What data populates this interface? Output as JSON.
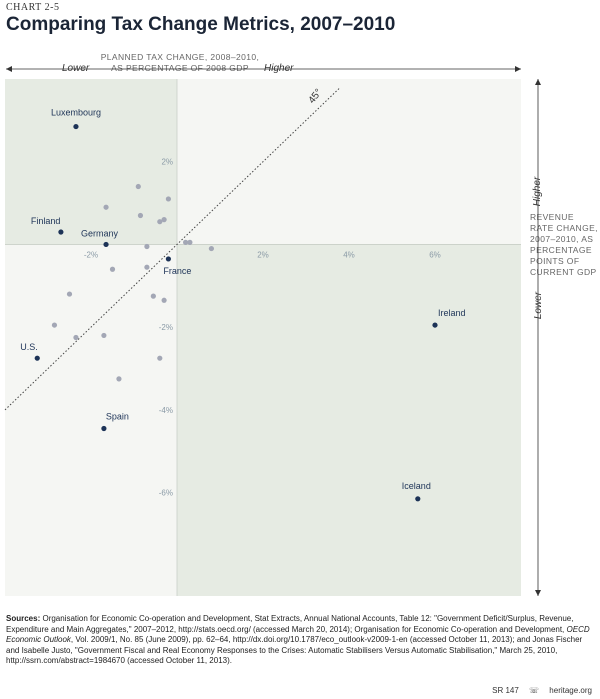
{
  "chart_number": "CHART 2-5",
  "title": "Comparing Tax Change Metrics, 2007–2010",
  "x_axis": {
    "label_line1": "PLANNED TAX CHANGE, 2008–2010,",
    "label_line2": "AS PERCENTAGE OF 2008 GDP",
    "lower": "Lower",
    "higher": "Higher"
  },
  "y_axis": {
    "label_line1": "REVENUE",
    "label_line2": "RATE CHANGE,",
    "label_line3": "2007–2010, AS",
    "label_line4": "PERCENTAGE",
    "label_line5": "POINTS OF",
    "label_line6": "CURRENT GDP",
    "higher": "Higher",
    "lower": "Lower"
  },
  "sources_label": "Sources:",
  "sources_text_1": "Organisation for Economic Co-operation and Development, Stat Extracts, Annual National Accounts, Table 12: \"Government Deficit/Surplus, Revenue, Expenditure and Main Aggregates,\" 2007–2012, http://stats.oecd.org/ (accessed March 20, 2014); Organisation for Economic Co-operation and Development,",
  "sources_italic": "OECD Economic Outlook",
  "sources_text_2": ", Vol. 2009/1, No. 85 (June 2009), pp. 62–64, http://dx.doi.org/10.1787/eco_outlook-v2009-1-en (accessed October 11, 2013); and Jonas Fischer and Isabelle Justo, \"Government Fiscal and Real Economy Responses to the Crises: Automatic Stabilisers Versus Automatic Stabilisation,\" March 25, 2010, http://ssrn.com/abstract=1984670 (accessed October 11, 2013).",
  "footer": {
    "report": "SR 147",
    "site": "heritage.org"
  },
  "colors": {
    "plot_bg": "#f5f6f3",
    "shade": "#e6ebe3",
    "labeled_point": "#1d3357",
    "unlabeled_point": "#a3a7b5",
    "tick_label": "#8a9aa6"
  },
  "chart_data": {
    "type": "scatter",
    "xlim": [
      -4,
      8
    ],
    "ylim": [
      -8.5,
      4
    ],
    "x_ticks": [
      -2,
      2,
      4,
      6
    ],
    "x_tick_labels": [
      "-2%",
      "2%",
      "4%",
      "6%"
    ],
    "y_ticks": [
      2,
      -2,
      -4,
      -6
    ],
    "y_tick_labels": [
      "2%",
      "-2%",
      "-4%",
      "-6%"
    ],
    "reference_line": {
      "slope": 1,
      "label": "45°"
    },
    "labeled_points": [
      {
        "name": "Luxembourg",
        "x": -2.35,
        "y": 2.85
      },
      {
        "name": "Finland",
        "x": -2.7,
        "y": 0.3
      },
      {
        "name": "Germany",
        "x": -1.65,
        "y": 0.0
      },
      {
        "name": "France",
        "x": -0.2,
        "y": -0.35
      },
      {
        "name": "Ireland",
        "x": 6.0,
        "y": -1.95
      },
      {
        "name": "U.S.",
        "x": -3.25,
        "y": -2.75
      },
      {
        "name": "Spain",
        "x": -1.7,
        "y": -4.45
      },
      {
        "name": "Iceland",
        "x": 5.6,
        "y": -6.15
      }
    ],
    "other_points": [
      {
        "x": -0.9,
        "y": 1.4
      },
      {
        "x": -1.65,
        "y": 0.9
      },
      {
        "x": -0.2,
        "y": 1.1
      },
      {
        "x": -0.85,
        "y": 0.7
      },
      {
        "x": -0.4,
        "y": 0.55
      },
      {
        "x": -0.3,
        "y": 0.6
      },
      {
        "x": -0.7,
        "y": -0.05
      },
      {
        "x": 0.2,
        "y": 0.05
      },
      {
        "x": 0.3,
        "y": 0.05
      },
      {
        "x": 0.8,
        "y": -0.1
      },
      {
        "x": -1.5,
        "y": -0.6
      },
      {
        "x": -0.7,
        "y": -0.55
      },
      {
        "x": -2.5,
        "y": -1.2
      },
      {
        "x": -0.55,
        "y": -1.25
      },
      {
        "x": -0.3,
        "y": -1.35
      },
      {
        "x": -2.85,
        "y": -1.95
      },
      {
        "x": -2.35,
        "y": -2.25
      },
      {
        "x": -1.7,
        "y": -2.2
      },
      {
        "x": -0.4,
        "y": -2.75
      },
      {
        "x": -1.35,
        "y": -3.25
      }
    ]
  }
}
